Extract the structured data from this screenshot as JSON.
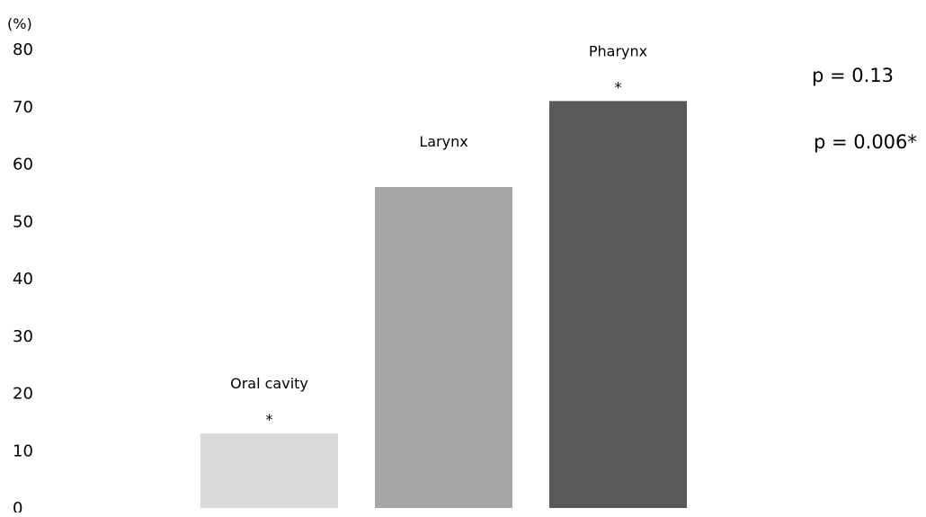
{
  "chart_data": {
    "type": "bar",
    "ylabel": "(%)",
    "ylim": [
      0,
      80
    ],
    "yticks": [
      0,
      10,
      20,
      30,
      40,
      50,
      60,
      70,
      80
    ],
    "grid": false,
    "categories": [
      "Oral cavity",
      "Larynx",
      "Pharynx"
    ],
    "values": [
      13,
      56,
      71
    ],
    "markers": [
      "*",
      "",
      "*"
    ],
    "colors": [
      "#d9d9d9",
      "#a6a6a6",
      "#595959"
    ],
    "annotations": [
      "p = 0.13",
      "p = 0.006*"
    ]
  }
}
